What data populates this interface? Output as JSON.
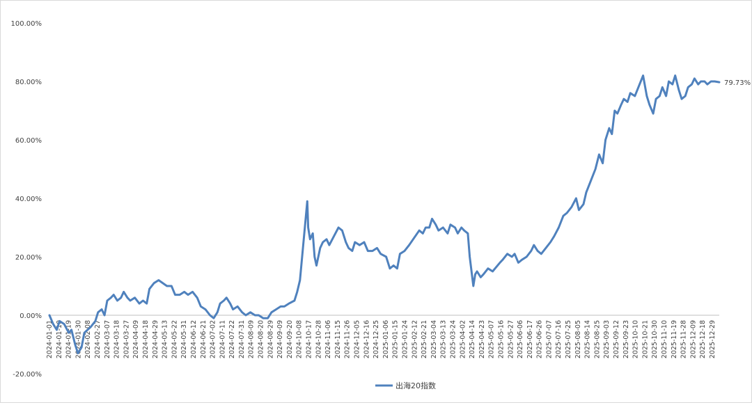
{
  "chart_data": {
    "type": "line",
    "title": "",
    "xlabel": "",
    "ylabel": "",
    "ylim": [
      -20,
      100
    ],
    "y_ticks": [
      -20,
      0,
      20,
      40,
      60,
      80,
      100
    ],
    "y_tick_labels": [
      "-20.00%",
      "0.00%",
      "20.00%",
      "40.00%",
      "60.00%",
      "80.00%",
      "100.00%"
    ],
    "grid": false,
    "legend_position": "bottom",
    "x_start": "2024-01-01",
    "x_end": "2025-12-31",
    "x_tick_labels": [
      "2024-01-01",
      "2024-01-10",
      "2024-01-19",
      "2024-01-30",
      "2024-02-08",
      "2024-02-27",
      "2024-03-07",
      "2024-03-18",
      "2024-03-27",
      "2024-04-09",
      "2024-04-18",
      "2024-04-29",
      "2024-05-13",
      "2024-05-22",
      "2024-05-31",
      "2024-06-12",
      "2024-06-21",
      "2024-07-02",
      "2024-07-11",
      "2024-07-22",
      "2024-07-31",
      "2024-08-09",
      "2024-08-20",
      "2024-08-29",
      "2024-09-09",
      "2024-09-20",
      "2024-10-08",
      "2024-10-17",
      "2024-10-28",
      "2024-11-06",
      "2024-11-15",
      "2024-11-26",
      "2024-12-05",
      "2024-12-16",
      "2024-12-25",
      "2025-01-06",
      "2025-01-15",
      "2025-01-24",
      "2025-02-12",
      "2025-02-21",
      "2025-03-04",
      "2025-03-13",
      "2025-03-24",
      "2025-04-02",
      "2025-04-14",
      "2025-04-23",
      "2025-05-07",
      "2025-05-16",
      "2025-05-27",
      "2025-06-06",
      "2025-06-17",
      "2025-06-26",
      "2025-07-07",
      "2025-07-16",
      "2025-07-25",
      "2025-08-05",
      "2025-08-14",
      "2025-08-25",
      "2025-09-03",
      "2025-09-12",
      "2025-09-23",
      "2025-10-10",
      "2025-10-21",
      "2025-10-30",
      "2025-11-10",
      "2025-11-19",
      "2025-11-28",
      "2025-12-09",
      "2025-12-18",
      "2025-12-29"
    ],
    "series": [
      {
        "name": "出海20指数",
        "color": "#4f81bd",
        "end_label": "79.73%",
        "points": [
          [
            "2024-01-01",
            0
          ],
          [
            "2024-01-05",
            -3
          ],
          [
            "2024-01-09",
            -5
          ],
          [
            "2024-01-12",
            -2
          ],
          [
            "2024-01-17",
            -3
          ],
          [
            "2024-01-22",
            -6
          ],
          [
            "2024-01-25",
            -5
          ],
          [
            "2024-01-29",
            -10
          ],
          [
            "2024-02-01",
            -13
          ],
          [
            "2024-02-05",
            -11
          ],
          [
            "2024-02-08",
            -6
          ],
          [
            "2024-02-15",
            -4
          ],
          [
            "2024-02-20",
            -2
          ],
          [
            "2024-02-23",
            1
          ],
          [
            "2024-02-27",
            2
          ],
          [
            "2024-03-01",
            0
          ],
          [
            "2024-03-04",
            5
          ],
          [
            "2024-03-08",
            6
          ],
          [
            "2024-03-11",
            7
          ],
          [
            "2024-03-15",
            5
          ],
          [
            "2024-03-19",
            6
          ],
          [
            "2024-03-22",
            8
          ],
          [
            "2024-03-26",
            6
          ],
          [
            "2024-03-29",
            5
          ],
          [
            "2024-04-03",
            6
          ],
          [
            "2024-04-08",
            4
          ],
          [
            "2024-04-12",
            5
          ],
          [
            "2024-04-16",
            4
          ],
          [
            "2024-04-19",
            9
          ],
          [
            "2024-04-24",
            11
          ],
          [
            "2024-04-29",
            12
          ],
          [
            "2024-05-08",
            10
          ],
          [
            "2024-05-13",
            10
          ],
          [
            "2024-05-17",
            7
          ],
          [
            "2024-05-22",
            7
          ],
          [
            "2024-05-27",
            8
          ],
          [
            "2024-05-31",
            7
          ],
          [
            "2024-06-05",
            8
          ],
          [
            "2024-06-10",
            6
          ],
          [
            "2024-06-14",
            3
          ],
          [
            "2024-06-19",
            2
          ],
          [
            "2024-06-24",
            0
          ],
          [
            "2024-06-28",
            -1
          ],
          [
            "2024-07-02",
            1
          ],
          [
            "2024-07-05",
            4
          ],
          [
            "2024-07-09",
            5
          ],
          [
            "2024-07-12",
            6
          ],
          [
            "2024-07-16",
            4
          ],
          [
            "2024-07-19",
            2
          ],
          [
            "2024-07-24",
            3
          ],
          [
            "2024-07-29",
            1
          ],
          [
            "2024-08-02",
            0
          ],
          [
            "2024-08-07",
            1
          ],
          [
            "2024-08-12",
            0
          ],
          [
            "2024-08-16",
            0
          ],
          [
            "2024-08-21",
            -1
          ],
          [
            "2024-08-26",
            -1
          ],
          [
            "2024-08-30",
            1
          ],
          [
            "2024-09-04",
            2
          ],
          [
            "2024-09-09",
            3
          ],
          [
            "2024-09-13",
            3
          ],
          [
            "2024-09-18",
            4
          ],
          [
            "2024-09-24",
            5
          ],
          [
            "2024-09-27",
            8
          ],
          [
            "2024-09-30",
            12
          ],
          [
            "2024-10-08",
            39
          ],
          [
            "2024-10-09",
            30
          ],
          [
            "2024-10-11",
            26
          ],
          [
            "2024-10-14",
            28
          ],
          [
            "2024-10-16",
            20
          ],
          [
            "2024-10-18",
            17
          ],
          [
            "2024-10-22",
            23
          ],
          [
            "2024-10-25",
            25
          ],
          [
            "2024-10-29",
            26
          ],
          [
            "2024-11-01",
            24
          ],
          [
            "2024-11-06",
            27
          ],
          [
            "2024-11-11",
            30
          ],
          [
            "2024-11-15",
            29
          ],
          [
            "2024-11-19",
            25
          ],
          [
            "2024-11-22",
            23
          ],
          [
            "2024-11-26",
            22
          ],
          [
            "2024-11-29",
            25
          ],
          [
            "2024-12-04",
            24
          ],
          [
            "2024-12-09",
            25
          ],
          [
            "2024-12-13",
            22
          ],
          [
            "2024-12-18",
            22
          ],
          [
            "2024-12-23",
            23
          ],
          [
            "2024-12-27",
            21
          ],
          [
            "2025-01-02",
            20
          ],
          [
            "2025-01-06",
            16
          ],
          [
            "2025-01-10",
            17
          ],
          [
            "2025-01-14",
            16
          ],
          [
            "2025-01-17",
            21
          ],
          [
            "2025-01-22",
            22
          ],
          [
            "2025-01-27",
            24
          ],
          [
            "2025-02-07",
            29
          ],
          [
            "2025-02-11",
            28
          ],
          [
            "2025-02-14",
            30
          ],
          [
            "2025-02-18",
            30
          ],
          [
            "2025-02-21",
            33
          ],
          [
            "2025-02-25",
            31
          ],
          [
            "2025-02-28",
            29
          ],
          [
            "2025-03-05",
            30
          ],
          [
            "2025-03-10",
            28
          ],
          [
            "2025-03-13",
            31
          ],
          [
            "2025-03-18",
            30
          ],
          [
            "2025-03-21",
            28
          ],
          [
            "2025-03-25",
            30
          ],
          [
            "2025-03-28",
            29
          ],
          [
            "2025-04-01",
            28
          ],
          [
            "2025-04-03",
            20
          ],
          [
            "2025-04-07",
            10
          ],
          [
            "2025-04-09",
            14
          ],
          [
            "2025-04-11",
            15
          ],
          [
            "2025-04-15",
            13
          ],
          [
            "2025-04-18",
            14
          ],
          [
            "2025-04-23",
            16
          ],
          [
            "2025-04-28",
            15
          ],
          [
            "2025-05-06",
            18
          ],
          [
            "2025-05-09",
            19
          ],
          [
            "2025-05-14",
            21
          ],
          [
            "2025-05-19",
            20
          ],
          [
            "2025-05-22",
            21
          ],
          [
            "2025-05-26",
            18
          ],
          [
            "2025-05-30",
            19
          ],
          [
            "2025-06-04",
            20
          ],
          [
            "2025-06-09",
            22
          ],
          [
            "2025-06-12",
            24
          ],
          [
            "2025-06-16",
            22
          ],
          [
            "2025-06-20",
            21
          ],
          [
            "2025-06-25",
            23
          ],
          [
            "2025-06-30",
            25
          ],
          [
            "2025-07-04",
            27
          ],
          [
            "2025-07-09",
            30
          ],
          [
            "2025-07-14",
            34
          ],
          [
            "2025-07-18",
            35
          ],
          [
            "2025-07-23",
            37
          ],
          [
            "2025-07-28",
            40
          ],
          [
            "2025-07-31",
            36
          ],
          [
            "2025-08-05",
            38
          ],
          [
            "2025-08-08",
            42
          ],
          [
            "2025-08-13",
            46
          ],
          [
            "2025-08-18",
            50
          ],
          [
            "2025-08-22",
            55
          ],
          [
            "2025-08-26",
            52
          ],
          [
            "2025-08-29",
            60
          ],
          [
            "2025-09-02",
            64
          ],
          [
            "2025-09-05",
            62
          ],
          [
            "2025-09-08",
            70
          ],
          [
            "2025-09-11",
            69
          ],
          [
            "2025-09-15",
            72
          ],
          [
            "2025-09-18",
            74
          ],
          [
            "2025-09-22",
            73
          ],
          [
            "2025-09-25",
            76
          ],
          [
            "2025-09-30",
            75
          ],
          [
            "2025-10-09",
            82
          ],
          [
            "2025-10-13",
            75
          ],
          [
            "2025-10-16",
            72
          ],
          [
            "2025-10-20",
            69
          ],
          [
            "2025-10-23",
            74
          ],
          [
            "2025-10-27",
            75
          ],
          [
            "2025-10-30",
            78
          ],
          [
            "2025-11-03",
            75
          ],
          [
            "2025-11-06",
            80
          ],
          [
            "2025-11-10",
            79
          ],
          [
            "2025-11-13",
            82
          ],
          [
            "2025-11-17",
            77
          ],
          [
            "2025-11-20",
            74
          ],
          [
            "2025-11-24",
            75
          ],
          [
            "2025-11-27",
            78
          ],
          [
            "2025-12-01",
            79
          ],
          [
            "2025-12-04",
            81
          ],
          [
            "2025-12-08",
            79
          ],
          [
            "2025-12-11",
            80
          ],
          [
            "2025-12-15",
            80
          ],
          [
            "2025-12-18",
            79
          ],
          [
            "2025-12-22",
            80
          ],
          [
            "2025-12-26",
            80
          ],
          [
            "2025-12-31",
            79.73
          ]
        ]
      }
    ]
  }
}
